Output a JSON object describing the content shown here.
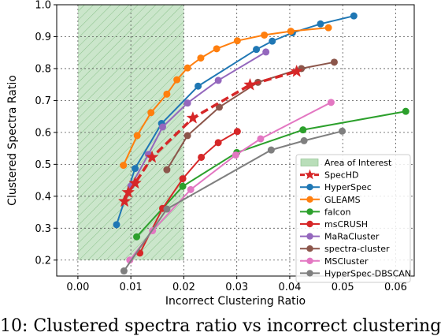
{
  "chart_data": {
    "type": "line",
    "xlabel": "Incorrect Clustering Ratio",
    "ylabel": "Clustered Spectra Ratio",
    "xlim": [
      -0.004,
      0.0635
    ],
    "ylim": [
      0.15,
      1.0
    ],
    "xticks": [
      "0.00",
      "0.01",
      "0.02",
      "0.03",
      "0.04",
      "0.05",
      "0.06"
    ],
    "yticks": [
      "0.2",
      "0.3",
      "0.4",
      "0.5",
      "0.6",
      "0.7",
      "0.8",
      "0.9",
      "1.0"
    ],
    "grid": "dotted",
    "legend_position": "lower-right",
    "area_of_interest": {
      "label": "Area of Interest",
      "x_range": [
        0.0,
        0.02
      ],
      "y_from": 0.2,
      "color": "#2ca02c"
    },
    "series": [
      {
        "name": "SpecHD",
        "color": "#d62728",
        "marker": "star",
        "style": "dashed",
        "x": [
          0.0088,
          0.0095,
          0.0108,
          0.014,
          0.0217,
          0.0325,
          0.0413
        ],
        "y": [
          0.384,
          0.412,
          0.441,
          0.522,
          0.645,
          0.749,
          0.791
        ]
      },
      {
        "name": "HyperSpec",
        "color": "#1f77b4",
        "marker": "circle",
        "style": "solid",
        "x": [
          0.0073,
          0.0108,
          0.0158,
          0.0227,
          0.0337,
          0.0367,
          0.0405,
          0.0458,
          0.0521
        ],
        "y": [
          0.311,
          0.487,
          0.628,
          0.745,
          0.86,
          0.886,
          0.912,
          0.94,
          0.965
        ]
      },
      {
        "name": "GLEAMS",
        "color": "#ff7f0e",
        "marker": "circle",
        "style": "solid",
        "x": [
          0.0086,
          0.0112,
          0.0138,
          0.0168,
          0.0187,
          0.0207,
          0.0232,
          0.0262,
          0.0301,
          0.0352,
          0.0402,
          0.0473
        ],
        "y": [
          0.497,
          0.59,
          0.662,
          0.72,
          0.765,
          0.802,
          0.833,
          0.862,
          0.887,
          0.905,
          0.917,
          0.928
        ]
      },
      {
        "name": "falcon",
        "color": "#2ca02c",
        "marker": "circle",
        "style": "solid",
        "x": [
          0.0111,
          0.0198,
          0.03,
          0.0425,
          0.0619
        ],
        "y": [
          0.273,
          0.431,
          0.537,
          0.608,
          0.666
        ]
      },
      {
        "name": "msCRUSH",
        "color": "#d62728",
        "marker": "circle",
        "style": "solid",
        "x": [
          0.0117,
          0.016,
          0.0198,
          0.0233,
          0.0265,
          0.0301
        ],
        "y": [
          0.222,
          0.362,
          0.455,
          0.522,
          0.568,
          0.603
        ]
      },
      {
        "name": "MaRaCluster",
        "color": "#9467bd",
        "marker": "circle",
        "style": "solid",
        "x": [
          0.01,
          0.0133,
          0.016,
          0.0207,
          0.0265,
          0.0355
        ],
        "y": [
          0.432,
          0.531,
          0.617,
          0.692,
          0.763,
          0.852
        ]
      },
      {
        "name": "spectra-cluster",
        "color": "#8c564b",
        "marker": "circle",
        "style": "solid",
        "x": [
          0.0168,
          0.0207,
          0.0267,
          0.034,
          0.0422,
          0.0484
        ],
        "y": [
          0.483,
          0.59,
          0.679,
          0.757,
          0.8,
          0.82
        ]
      },
      {
        "name": "MSCluster",
        "color": "#e377c2",
        "marker": "circle",
        "style": "solid",
        "x": [
          0.0098,
          0.0141,
          0.0213,
          0.0298,
          0.0345,
          0.0478
        ],
        "y": [
          0.2,
          0.292,
          0.421,
          0.529,
          0.58,
          0.694
        ]
      },
      {
        "name": "HyperSpec-DBSCAN",
        "color": "#7f7f7f",
        "marker": "circle",
        "style": "solid",
        "x": [
          0.0087,
          0.0168,
          0.0365,
          0.0427,
          0.0499
        ],
        "y": [
          0.166,
          0.36,
          0.545,
          0.574,
          0.604
        ]
      }
    ]
  },
  "caption": "10: Clustered spectra ratio vs incorrect clustering"
}
